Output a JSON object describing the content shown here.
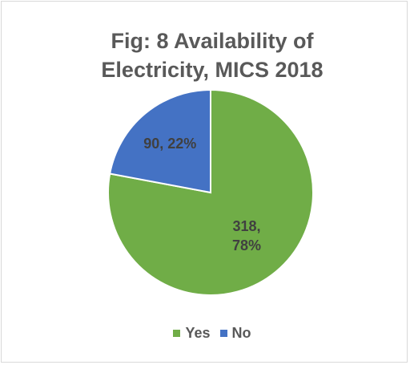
{
  "chart_data": {
    "type": "pie",
    "title_lines": [
      "Fig: 8 Availability of",
      "Electricity, MICS 2018"
    ],
    "slices": [
      {
        "name": "Yes",
        "value": 318,
        "percent": 78,
        "color": "#70ad47",
        "label_lines": [
          "318,",
          "78%"
        ]
      },
      {
        "name": "No",
        "value": 90,
        "percent": 22,
        "color": "#4472c4",
        "label_lines": [
          "90, 22%"
        ]
      }
    ],
    "legend": {
      "position": "bottom",
      "items": [
        "Yes",
        "No"
      ]
    }
  }
}
